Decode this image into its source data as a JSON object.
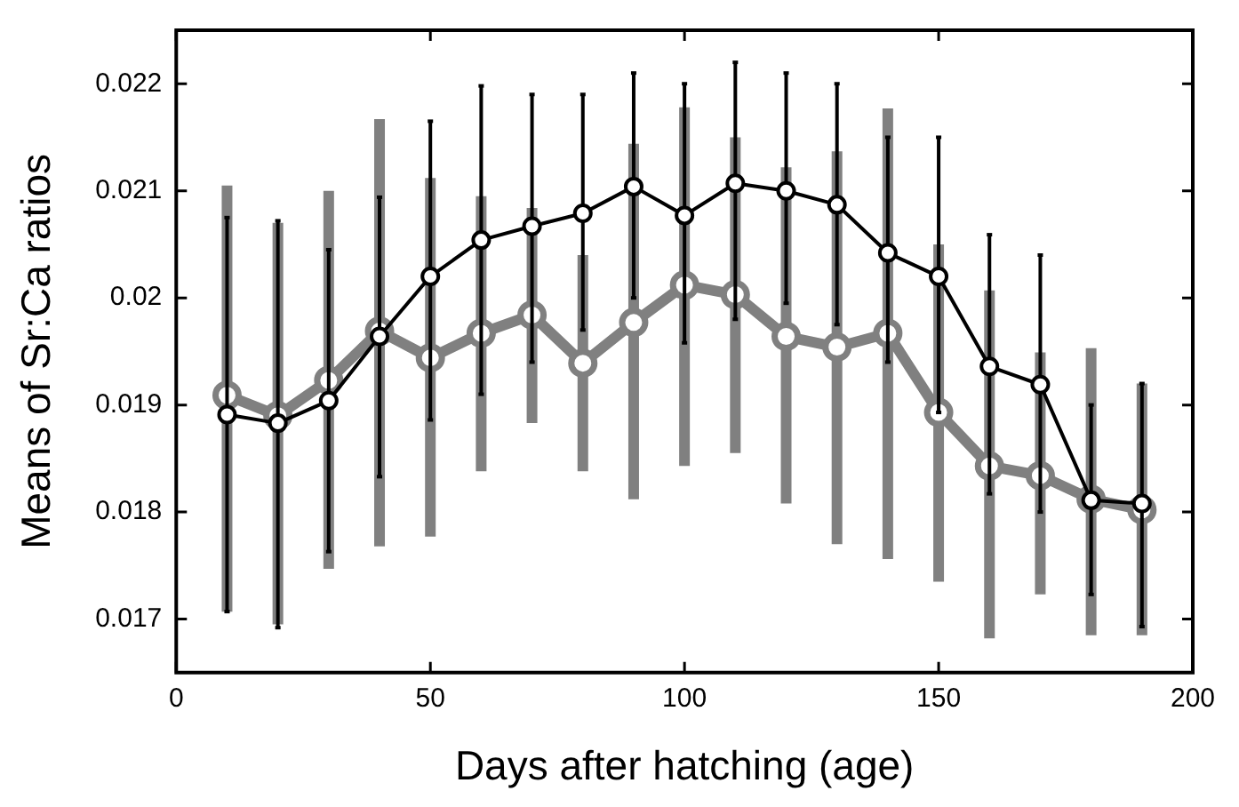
{
  "chart_data": {
    "type": "line",
    "xlabel": "Days after hatching (age)",
    "ylabel": "Means of Sr:Ca ratios",
    "xlim": [
      0,
      200
    ],
    "xticks": [
      0,
      50,
      100,
      150,
      200
    ],
    "ylim": [
      0.0165,
      0.0225
    ],
    "yticks": [
      0.017,
      0.018,
      0.019,
      0.02,
      0.021,
      0.022
    ],
    "grid": false,
    "legend": false,
    "marker": "circle",
    "line_style": "solid",
    "x": [
      10,
      20,
      30,
      40,
      50,
      60,
      70,
      80,
      90,
      100,
      110,
      120,
      130,
      140,
      150,
      160,
      170,
      180,
      190
    ],
    "series": [
      {
        "color": "#808080",
        "values": [
          0.01909,
          0.0189,
          0.01923,
          0.01969,
          0.01944,
          0.01967,
          0.01984,
          0.01939,
          0.01977,
          0.02012,
          0.02003,
          0.01964,
          0.01954,
          0.01967,
          0.01893,
          0.01843,
          0.01834,
          0.01812,
          0.01802
        ],
        "errors": [
          [
            0.01707,
            0.02105
          ],
          [
            0.01695,
            0.0207
          ],
          [
            0.01747,
            0.021
          ],
          [
            0.01768,
            0.02167
          ],
          [
            0.01777,
            0.02112
          ],
          [
            0.01838,
            0.02095
          ],
          [
            0.01883,
            0.02084
          ],
          [
            0.01838,
            0.0204
          ],
          [
            0.01812,
            0.02144
          ],
          [
            0.01843,
            0.02178
          ],
          [
            0.01855,
            0.0215
          ],
          [
            0.01808,
            0.02122
          ],
          [
            0.0177,
            0.02137
          ],
          [
            0.01756,
            0.02177
          ],
          [
            0.01735,
            0.0205
          ],
          [
            0.01682,
            0.02007
          ],
          [
            0.01723,
            0.01949
          ],
          [
            0.01685,
            0.01953
          ],
          [
            0.01685,
            0.0192
          ]
        ]
      },
      {
        "color": "#000000",
        "values": [
          0.01891,
          0.01883,
          0.01904,
          0.01964,
          0.0202,
          0.02054,
          0.02067,
          0.02079,
          0.02104,
          0.02077,
          0.02107,
          0.021,
          0.02087,
          0.02042,
          0.0202,
          0.01936,
          0.01919,
          0.01811,
          0.01808
        ],
        "errors": [
          [
            0.01707,
            0.02075
          ],
          [
            0.01692,
            0.02072
          ],
          [
            0.01763,
            0.02045
          ],
          [
            0.01833,
            0.02094
          ],
          [
            0.01886,
            0.02165
          ],
          [
            0.0191,
            0.02198
          ],
          [
            0.0194,
            0.0219
          ],
          [
            0.0197,
            0.0219
          ],
          [
            0.02,
            0.0221
          ],
          [
            0.01958,
            0.022
          ],
          [
            0.0198,
            0.0222
          ],
          [
            0.01995,
            0.0221
          ],
          [
            0.01975,
            0.022
          ],
          [
            0.0194,
            0.0215
          ],
          [
            0.01893,
            0.0215
          ],
          [
            0.01817,
            0.02059
          ],
          [
            0.018,
            0.0204
          ],
          [
            0.01723,
            0.019
          ],
          [
            0.01693,
            0.0192
          ]
        ]
      }
    ]
  }
}
